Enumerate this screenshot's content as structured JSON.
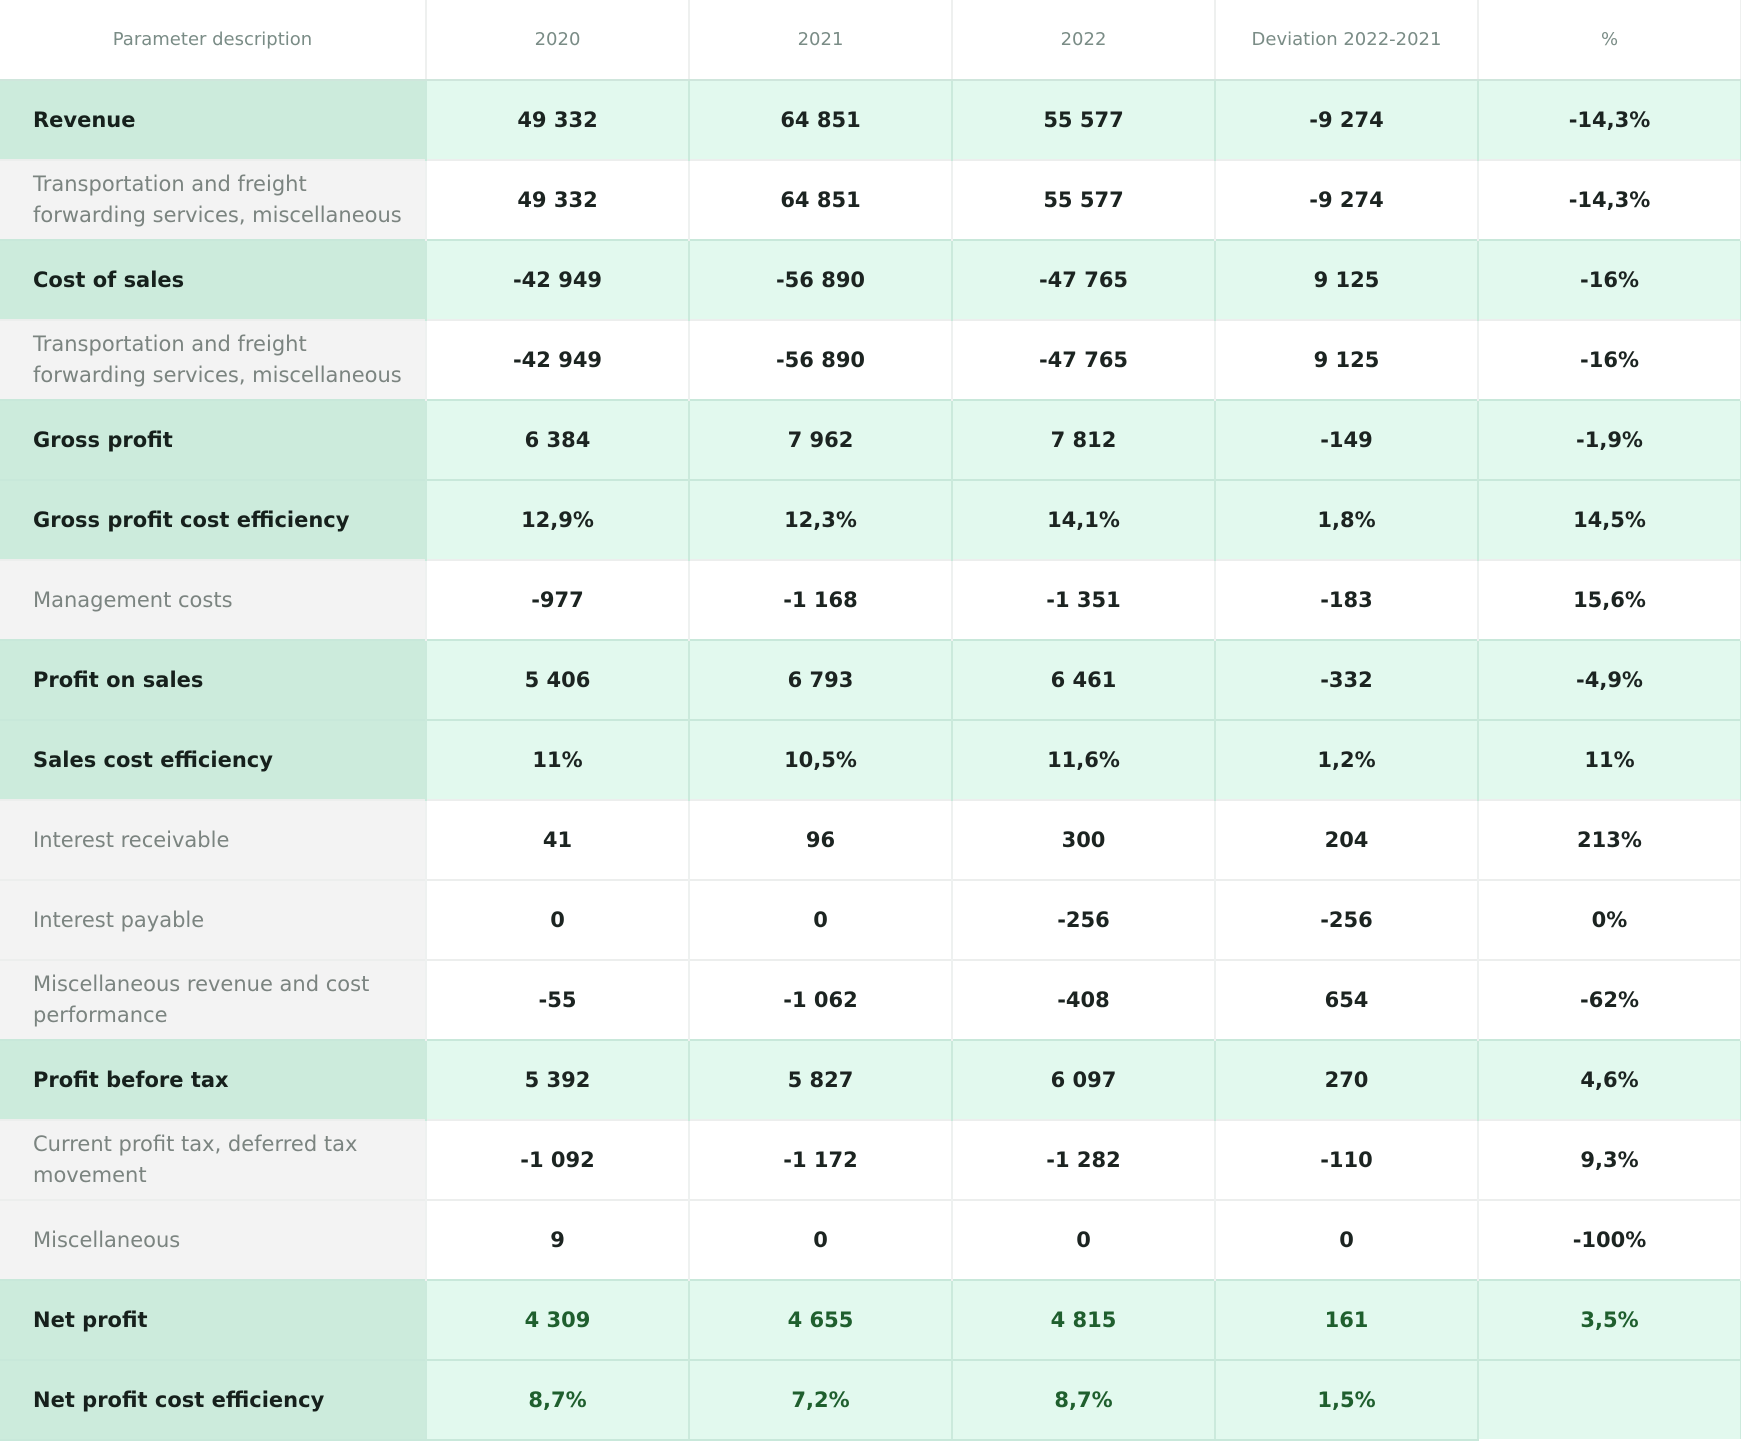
{
  "table": {
    "headers": [
      "Parameter description",
      "2020",
      "2021",
      "2022",
      "Deviation 2022-2021",
      "%"
    ],
    "rows": [
      {
        "label": "Revenue",
        "type": "hl",
        "values": [
          "49 332",
          "64 851",
          "55 577",
          "-9 274",
          "-14,3%"
        ]
      },
      {
        "label": "Transportation and freight forwarding services, miscellaneous",
        "type": "det",
        "values": [
          "49 332",
          "64 851",
          "55 577",
          "-9 274",
          "-14,3%"
        ]
      },
      {
        "label": "Cost of sales",
        "type": "hl",
        "values": [
          "-42 949",
          "-56 890",
          "-47 765",
          "9 125",
          "-16%"
        ]
      },
      {
        "label": "Transportation and freight forwarding services, miscellaneous",
        "type": "det",
        "values": [
          "-42 949",
          "-56 890",
          "-47 765",
          "9 125",
          "-16%"
        ]
      },
      {
        "label": "Gross profit",
        "type": "hl",
        "values": [
          "6 384",
          "7 962",
          "7 812",
          "-149",
          "-1,9%"
        ]
      },
      {
        "label": "Gross profit cost efficiency",
        "type": "hl",
        "values": [
          "12,9%",
          "12,3%",
          "14,1%",
          "1,8%",
          "14,5%"
        ]
      },
      {
        "label": "Management costs",
        "type": "det",
        "values": [
          "-977",
          "-1 168",
          "-1 351",
          "-183",
          "15,6%"
        ]
      },
      {
        "label": "Profit on sales",
        "type": "hl",
        "values": [
          "5 406",
          "6 793",
          "6 461",
          "-332",
          "-4,9%"
        ]
      },
      {
        "label": "Sales cost efficiency",
        "type": "hl",
        "values": [
          "11%",
          "10,5%",
          "11,6%",
          "1,2%",
          "11%"
        ]
      },
      {
        "label": "Interest receivable",
        "type": "det",
        "values": [
          "41",
          "96",
          "300",
          "204",
          "213%"
        ]
      },
      {
        "label": "Interest payable",
        "type": "det",
        "values": [
          "0",
          "0",
          "-256",
          "-256",
          "0%"
        ]
      },
      {
        "label": "Miscellaneous revenue and cost performance",
        "type": "det",
        "values": [
          "-55",
          "-1 062",
          "-408",
          "654",
          "-62%"
        ]
      },
      {
        "label": "Profit before tax",
        "type": "hl",
        "values": [
          "5 392",
          "5 827",
          "6 097",
          "270",
          "4,6%"
        ]
      },
      {
        "label": "Current profit tax, deferred tax movement",
        "type": "det",
        "values": [
          "-1 092",
          "-1 172",
          "-1 282",
          "-110",
          "9,3%"
        ]
      },
      {
        "label": "Miscellaneous",
        "type": "det",
        "values": [
          "9",
          "0",
          "0",
          "0",
          "-100%"
        ]
      },
      {
        "label": "Net profit",
        "type": "hl",
        "green": true,
        "values": [
          "4 309",
          "4 655",
          "4 815",
          "161",
          "3,5%"
        ]
      },
      {
        "label": "Net profit cost efficiency",
        "type": "hl",
        "green": true,
        "values": [
          "8,7%",
          "7,2%",
          "8,7%",
          "1,5%",
          ""
        ]
      }
    ]
  }
}
